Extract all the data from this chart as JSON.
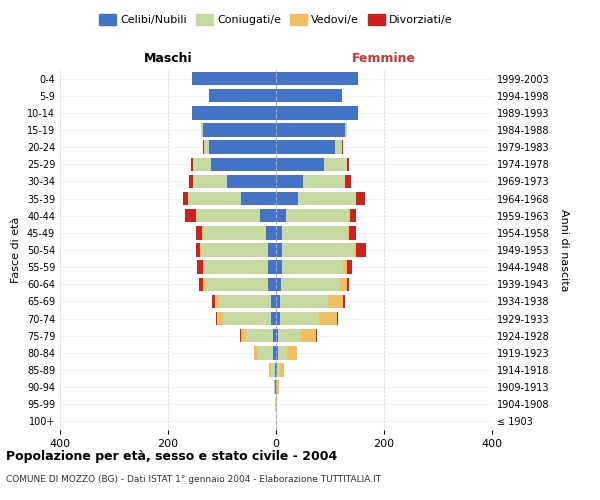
{
  "age_groups": [
    "100+",
    "95-99",
    "90-94",
    "85-89",
    "80-84",
    "75-79",
    "70-74",
    "65-69",
    "60-64",
    "55-59",
    "50-54",
    "45-49",
    "40-44",
    "35-39",
    "30-34",
    "25-29",
    "20-24",
    "15-19",
    "10-14",
    "5-9",
    "0-4"
  ],
  "birth_years": [
    "≤ 1903",
    "1904-1908",
    "1909-1913",
    "1914-1918",
    "1919-1923",
    "1924-1928",
    "1929-1933",
    "1934-1938",
    "1939-1943",
    "1944-1948",
    "1949-1953",
    "1954-1958",
    "1959-1963",
    "1964-1968",
    "1969-1973",
    "1974-1978",
    "1979-1983",
    "1984-1988",
    "1989-1993",
    "1994-1998",
    "1999-2003"
  ],
  "maschi": {
    "celibi": [
      0,
      0,
      1,
      2,
      5,
      5,
      10,
      10,
      15,
      15,
      15,
      18,
      30,
      65,
      90,
      120,
      125,
      135,
      155,
      125,
      155
    ],
    "coniugati": [
      0,
      1,
      2,
      8,
      28,
      52,
      88,
      95,
      115,
      118,
      123,
      118,
      118,
      98,
      63,
      33,
      8,
      4,
      0,
      0,
      0
    ],
    "vedovi": [
      0,
      0,
      1,
      3,
      8,
      8,
      12,
      8,
      5,
      3,
      2,
      1,
      1,
      0,
      0,
      0,
      0,
      0,
      0,
      0,
      0
    ],
    "divorziati": [
      0,
      0,
      0,
      0,
      0,
      2,
      2,
      5,
      8,
      10,
      8,
      12,
      20,
      10,
      8,
      5,
      2,
      0,
      0,
      0,
      0
    ]
  },
  "femmine": {
    "nubili": [
      0,
      0,
      0,
      2,
      3,
      4,
      8,
      8,
      10,
      12,
      12,
      12,
      18,
      40,
      50,
      88,
      110,
      128,
      152,
      122,
      152
    ],
    "coniugate": [
      0,
      1,
      2,
      5,
      18,
      42,
      72,
      88,
      108,
      112,
      132,
      122,
      118,
      108,
      78,
      43,
      13,
      4,
      0,
      0,
      0
    ],
    "vedove": [
      0,
      1,
      3,
      8,
      18,
      28,
      33,
      28,
      13,
      8,
      4,
      2,
      1,
      1,
      0,
      0,
      0,
      0,
      0,
      0,
      0
    ],
    "divorziate": [
      0,
      0,
      0,
      0,
      0,
      2,
      2,
      3,
      5,
      8,
      18,
      12,
      12,
      15,
      10,
      5,
      2,
      0,
      0,
      0,
      0
    ]
  },
  "colors": {
    "celibi_nubili": "#4472c4",
    "coniugati": "#c5d9a0",
    "vedovi": "#f0c060",
    "divorziati": "#cc2222"
  },
  "xlim": 400,
  "title": "Popolazione per età, sesso e stato civile - 2004",
  "subtitle": "COMUNE DI MOZZO (BG) - Dati ISTAT 1° gennaio 2004 - Elaborazione TUTTITALIA.IT",
  "xlabel_left": "Maschi",
  "xlabel_right": "Femmine",
  "ylabel_left": "Fasce di età",
  "ylabel_right": "Anni di nascita",
  "background_color": "#ffffff",
  "grid_color": "#cccccc"
}
